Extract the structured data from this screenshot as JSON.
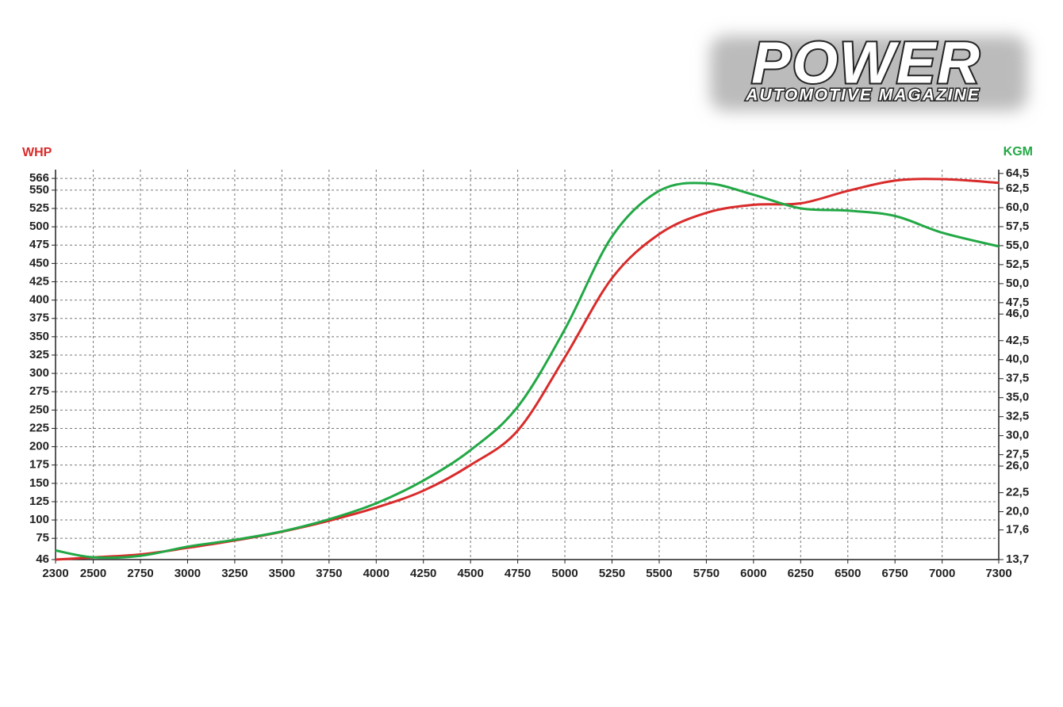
{
  "logo": {
    "title": "POWER",
    "subtitle": "AUTOMOTIVE MAGAZINE"
  },
  "chart_data": {
    "type": "line",
    "ylabel": "WHP",
    "y2label": "KGM",
    "x": [
      2300,
      2500,
      2750,
      3000,
      3250,
      3500,
      3750,
      4000,
      4250,
      4500,
      4750,
      5000,
      5250,
      5500,
      5750,
      6000,
      6250,
      6500,
      6750,
      7000,
      7300
    ],
    "xlim": [
      2300,
      7300
    ],
    "xticks": [
      2300,
      2500,
      2750,
      3000,
      3250,
      3500,
      3750,
      4000,
      4250,
      4500,
      4750,
      5000,
      5250,
      5500,
      5750,
      6000,
      6250,
      6500,
      6750,
      7000,
      7300
    ],
    "ylim": [
      46,
      578
    ],
    "yticks": [
      46,
      75,
      100,
      125,
      150,
      175,
      200,
      225,
      250,
      275,
      300,
      325,
      350,
      375,
      400,
      425,
      450,
      475,
      500,
      525,
      550,
      566
    ],
    "y2lim": [
      13.7,
      65
    ],
    "y2ticks": [
      {
        "value": 13.7,
        "label": "13,7"
      },
      {
        "value": 17.6,
        "label": "17,6"
      },
      {
        "value": 20,
        "label": "20,0"
      },
      {
        "value": 22.5,
        "label": "22,5"
      },
      {
        "value": 26,
        "label": "26,0"
      },
      {
        "value": 27.5,
        "label": "27,5"
      },
      {
        "value": 30,
        "label": "30,0"
      },
      {
        "value": 32.5,
        "label": "32,5"
      },
      {
        "value": 35,
        "label": "35,0"
      },
      {
        "value": 37.5,
        "label": "37,5"
      },
      {
        "value": 40,
        "label": "40,0"
      },
      {
        "value": 42.5,
        "label": "42,5"
      },
      {
        "value": 46,
        "label": "46,0"
      },
      {
        "value": 47.5,
        "label": "47,5"
      },
      {
        "value": 50,
        "label": "50,0"
      },
      {
        "value": 52.5,
        "label": "52,5"
      },
      {
        "value": 55,
        "label": "55,0"
      },
      {
        "value": 57.5,
        "label": "57,5"
      },
      {
        "value": 60,
        "label": "60,0"
      },
      {
        "value": 62.5,
        "label": "62,5"
      },
      {
        "value": 64.5,
        "label": "64,5"
      }
    ],
    "grid": true,
    "series": [
      {
        "color": "#d92b2b",
        "values": [
          46,
          49,
          53,
          62,
          72,
          84,
          99,
          117,
          140,
          175,
          222,
          322,
          430,
          490,
          519,
          530,
          532,
          549,
          563,
          565,
          560
        ]
      },
      {
        "color": "#22a845",
        "axis": "y2",
        "values": [
          14.9,
          14.0,
          14.2,
          15.4,
          16.3,
          17.4,
          19.0,
          21.1,
          24.1,
          28.1,
          33.8,
          44.0,
          56.2,
          62.2,
          63.2,
          61.7,
          59.9,
          59.6,
          58.9,
          56.7,
          54.9
        ]
      }
    ]
  }
}
